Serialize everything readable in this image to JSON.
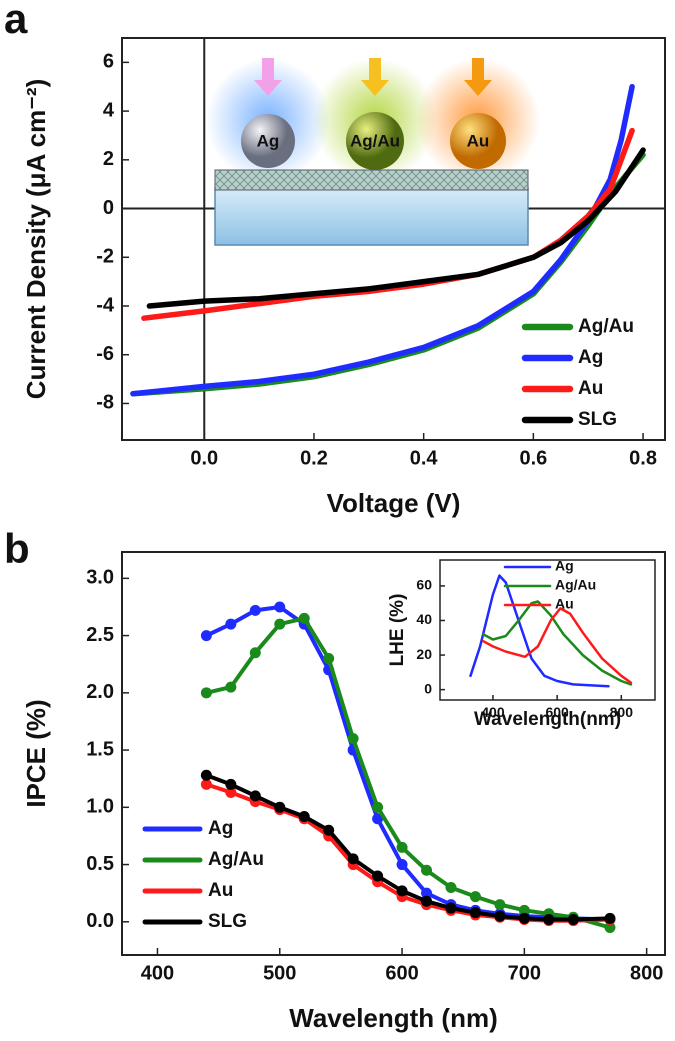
{
  "chart_data": [
    {
      "type": "line",
      "panel_label": "a",
      "xlabel": "Voltage (V)",
      "ylabel": "Current Density (μA cm⁻²)",
      "xlim": [
        -0.15,
        0.84
      ],
      "ylim": [
        -9.5,
        7
      ],
      "xticks": [
        {
          "value": 0,
          "label": "0.0"
        },
        0.2,
        0.4,
        0.6,
        0.8
      ],
      "yticks": [
        -8,
        -6,
        -4,
        -2,
        0,
        2,
        4,
        6
      ],
      "zero_lines": true,
      "legend": "lower right",
      "annotations": [
        "Ag",
        "Ag/Au",
        "Au"
      ],
      "series": [
        {
          "name": "Ag/Au",
          "color": "#1a8a1a",
          "x": [
            -0.13,
            0,
            0.1,
            0.2,
            0.3,
            0.4,
            0.5,
            0.6,
            0.65,
            0.7,
            0.74,
            0.77,
            0.8
          ],
          "values": [
            -7.6,
            -7.4,
            -7.2,
            -6.9,
            -6.4,
            -5.8,
            -4.9,
            -3.5,
            -2.2,
            -0.7,
            0.6,
            1.4,
            2.2
          ]
        },
        {
          "name": "Ag",
          "color": "#1f2bff",
          "x": [
            -0.13,
            0,
            0.1,
            0.2,
            0.3,
            0.4,
            0.5,
            0.6,
            0.65,
            0.7,
            0.74,
            0.76,
            0.78
          ],
          "values": [
            -7.6,
            -7.3,
            -7.1,
            -6.8,
            -6.3,
            -5.7,
            -4.8,
            -3.4,
            -2.1,
            -0.5,
            1.2,
            2.8,
            5
          ]
        },
        {
          "name": "Au",
          "color": "#ff1a1a",
          "x": [
            -0.11,
            0,
            0.1,
            0.2,
            0.3,
            0.4,
            0.5,
            0.6,
            0.65,
            0.7,
            0.74,
            0.78
          ],
          "values": [
            -4.5,
            -4.2,
            -3.9,
            -3.6,
            -3.4,
            -3.1,
            -2.7,
            -2.0,
            -1.3,
            -0.3,
            0.8,
            3.2
          ]
        },
        {
          "name": "SLG",
          "color": "#000000",
          "x": [
            -0.1,
            0,
            0.1,
            0.2,
            0.3,
            0.4,
            0.5,
            0.6,
            0.65,
            0.7,
            0.75,
            0.8
          ],
          "values": [
            -4.0,
            -3.8,
            -3.7,
            -3.5,
            -3.3,
            -3.0,
            -2.7,
            -2.0,
            -1.4,
            -0.5,
            0.7,
            2.4
          ]
        }
      ]
    },
    {
      "type": "line",
      "panel_label": "b",
      "xlabel": "Wavelength (nm)",
      "ylabel": "IPCE (%)",
      "xlim": [
        371,
        815
      ],
      "ylim": [
        -0.29,
        3.23
      ],
      "xticks": [
        400,
        500,
        600,
        700,
        800
      ],
      "yticks": [
        {
          "value": 0,
          "label": "0.0"
        },
        0.5,
        {
          "value": 1,
          "label": "1.0"
        },
        1.5,
        {
          "value": 2,
          "label": "2.0"
        },
        2.5,
        {
          "value": 3,
          "label": "3.0"
        }
      ],
      "markers": true,
      "legend": "lower left",
      "series": [
        {
          "name": "Ag",
          "color": "#1f2bff",
          "x": [
            440,
            460,
            480,
            500,
            520,
            540,
            560,
            580,
            600,
            620,
            640,
            660,
            680,
            700,
            720,
            740,
            770
          ],
          "values": [
            2.5,
            2.6,
            2.72,
            2.75,
            2.6,
            2.2,
            1.5,
            0.9,
            0.5,
            0.25,
            0.15,
            0.1,
            0.07,
            0.05,
            0.04,
            0.03,
            0.02
          ]
        },
        {
          "name": "Ag/Au",
          "color": "#1a8a1a",
          "x": [
            440,
            460,
            480,
            500,
            520,
            540,
            560,
            580,
            600,
            620,
            640,
            660,
            680,
            700,
            720,
            740,
            770
          ],
          "values": [
            2.0,
            2.05,
            2.35,
            2.6,
            2.65,
            2.3,
            1.6,
            1.0,
            0.65,
            0.45,
            0.3,
            0.22,
            0.15,
            0.1,
            0.07,
            0.04,
            -0.05
          ]
        },
        {
          "name": "Au",
          "color": "#ff1a1a",
          "x": [
            440,
            460,
            480,
            500,
            520,
            540,
            560,
            580,
            600,
            620,
            640,
            660,
            680,
            700,
            720,
            740,
            770
          ],
          "values": [
            1.2,
            1.13,
            1.05,
            0.98,
            0.9,
            0.75,
            0.5,
            0.35,
            0.22,
            0.15,
            0.1,
            0.06,
            0.04,
            0.02,
            0.01,
            0.01,
            0.02
          ]
        },
        {
          "name": "SLG",
          "color": "#000000",
          "x": [
            440,
            460,
            480,
            500,
            520,
            540,
            560,
            580,
            600,
            620,
            640,
            660,
            680,
            700,
            720,
            740,
            770
          ],
          "values": [
            1.28,
            1.2,
            1.1,
            1.0,
            0.92,
            0.8,
            0.55,
            0.4,
            0.27,
            0.18,
            0.12,
            0.08,
            0.05,
            0.03,
            0.02,
            0.02,
            0.03
          ]
        }
      ]
    },
    {
      "type": "line",
      "xlabel": "Wavelength(nm)",
      "ylabel": "LHE (%)",
      "xlim": [
        235,
        905
      ],
      "ylim": [
        -6,
        75
      ],
      "xticks": [
        400,
        600,
        800
      ],
      "yticks": [
        0,
        20,
        40,
        60
      ],
      "legend": "upper center",
      "series": [
        {
          "name": "Ag",
          "color": "#1f2bff",
          "x": [
            330,
            360,
            400,
            420,
            440,
            480,
            520,
            560,
            600,
            650,
            700,
            760
          ],
          "values": [
            8,
            25,
            55,
            66,
            62,
            40,
            18,
            8,
            5,
            3,
            2.5,
            2
          ]
        },
        {
          "name": "Ag/Au",
          "color": "#1a8a1a",
          "x": [
            370,
            400,
            440,
            480,
            520,
            540,
            580,
            620,
            680,
            740,
            800,
            830
          ],
          "values": [
            32,
            29,
            31,
            40,
            50,
            51,
            43,
            32,
            20,
            11,
            5,
            3
          ]
        },
        {
          "name": "Au",
          "color": "#ff1a1a",
          "x": [
            370,
            400,
            440,
            500,
            540,
            580,
            610,
            640,
            680,
            740,
            800,
            830
          ],
          "values": [
            28,
            25,
            22,
            19,
            25,
            40,
            47,
            44,
            33,
            18,
            8,
            4
          ]
        }
      ]
    }
  ]
}
